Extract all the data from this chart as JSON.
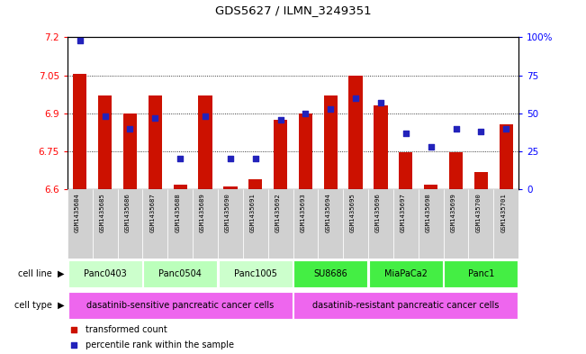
{
  "title": "GDS5627 / ILMN_3249351",
  "samples": [
    "GSM1435684",
    "GSM1435685",
    "GSM1435686",
    "GSM1435687",
    "GSM1435688",
    "GSM1435689",
    "GSM1435690",
    "GSM1435691",
    "GSM1435692",
    "GSM1435693",
    "GSM1435694",
    "GSM1435695",
    "GSM1435696",
    "GSM1435697",
    "GSM1435698",
    "GSM1435699",
    "GSM1435700",
    "GSM1435701"
  ],
  "bar_values": [
    7.055,
    6.97,
    6.9,
    6.97,
    6.62,
    6.97,
    6.61,
    6.64,
    6.875,
    6.9,
    6.97,
    7.05,
    6.93,
    6.745,
    6.62,
    6.745,
    6.67,
    6.855
  ],
  "percentile_values": [
    98,
    48,
    40,
    47,
    20,
    48,
    20,
    20,
    46,
    50,
    53,
    60,
    57,
    37,
    28,
    40,
    38,
    40
  ],
  "ylim_left": [
    6.6,
    7.2
  ],
  "ylim_right": [
    0,
    100
  ],
  "yticks_left": [
    6.6,
    6.75,
    6.9,
    7.05,
    7.2
  ],
  "ytick_labels_left": [
    "6.6",
    "6.75",
    "6.9",
    "7.05",
    "7.2"
  ],
  "yticks_right": [
    0,
    25,
    50,
    75,
    100
  ],
  "ytick_labels_right": [
    "0",
    "25",
    "50",
    "75",
    "100%"
  ],
  "bar_color": "#cc1100",
  "dot_color": "#2222bb",
  "grid_color": "#000000",
  "bg_color": "#ffffff",
  "cell_lines": [
    {
      "label": "Panc0403",
      "start": 0,
      "end": 3,
      "color": "#ccffcc"
    },
    {
      "label": "Panc0504",
      "start": 3,
      "end": 6,
      "color": "#bbffbb"
    },
    {
      "label": "Panc1005",
      "start": 6,
      "end": 9,
      "color": "#ccffcc"
    },
    {
      "label": "SU8686",
      "start": 9,
      "end": 12,
      "color": "#44ee44"
    },
    {
      "label": "MiaPaCa2",
      "start": 12,
      "end": 15,
      "color": "#44ee44"
    },
    {
      "label": "Panc1",
      "start": 15,
      "end": 18,
      "color": "#44ee44"
    }
  ],
  "cell_types": [
    {
      "label": "dasatinib-sensitive pancreatic cancer cells",
      "start": 0,
      "end": 9,
      "color": "#ee66ee"
    },
    {
      "label": "dasatinib-resistant pancreatic cancer cells",
      "start": 9,
      "end": 18,
      "color": "#ee66ee"
    }
  ],
  "legend_items": [
    {
      "label": "transformed count",
      "color": "#cc1100"
    },
    {
      "label": "percentile rank within the sample",
      "color": "#2222bb"
    }
  ],
  "bar_width": 0.55,
  "base_value": 6.6,
  "n_samples": 18
}
